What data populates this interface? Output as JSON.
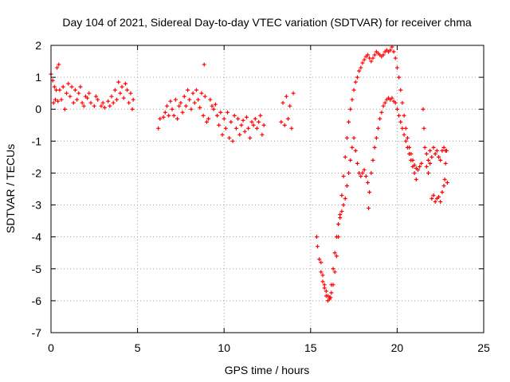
{
  "chart_data": {
    "type": "scatter",
    "title": "Day 104 of 2021, Sidereal Day-to-day VTEC variation (SDTVAR) for receiver chma",
    "xlabel": "GPS time / hours",
    "ylabel": "SDTVAR / TECUs",
    "xlim": [
      0,
      25
    ],
    "ylim": [
      -7,
      2
    ],
    "xticks": [
      0,
      5,
      10,
      15,
      20,
      25
    ],
    "yticks": [
      -7,
      -6,
      -5,
      -4,
      -3,
      -2,
      -1,
      0,
      1,
      2
    ],
    "grid": true,
    "marker": "+",
    "color": "#ff0000",
    "series": [
      {
        "name": "SDTVAR",
        "points": [
          [
            0.0,
            1.1
          ],
          [
            0.1,
            0.9
          ],
          [
            0.15,
            0.2
          ],
          [
            0.2,
            0.7
          ],
          [
            0.25,
            0.3
          ],
          [
            0.3,
            0.6
          ],
          [
            0.35,
            1.3
          ],
          [
            0.4,
            0.25
          ],
          [
            0.45,
            1.4
          ],
          [
            0.5,
            0.6
          ],
          [
            0.6,
            0.3
          ],
          [
            0.7,
            0.7
          ],
          [
            0.8,
            0.0
          ],
          [
            0.9,
            0.5
          ],
          [
            1.0,
            0.8
          ],
          [
            1.1,
            0.4
          ],
          [
            1.2,
            0.7
          ],
          [
            1.3,
            0.2
          ],
          [
            1.4,
            0.6
          ],
          [
            1.5,
            0.3
          ],
          [
            1.6,
            0.5
          ],
          [
            1.7,
            0.7
          ],
          [
            1.8,
            0.2
          ],
          [
            1.9,
            0.1
          ],
          [
            2.0,
            0.4
          ],
          [
            2.1,
            0.35
          ],
          [
            2.2,
            0.5
          ],
          [
            2.3,
            0.2
          ],
          [
            2.5,
            0.1
          ],
          [
            2.6,
            0.4
          ],
          [
            2.7,
            0.3
          ],
          [
            2.9,
            0.1
          ],
          [
            3.0,
            0.2
          ],
          [
            3.1,
            0.05
          ],
          [
            3.3,
            0.25
          ],
          [
            3.4,
            0.1
          ],
          [
            3.5,
            0.4
          ],
          [
            3.6,
            0.2
          ],
          [
            3.7,
            0.6
          ],
          [
            3.8,
            0.3
          ],
          [
            3.9,
            0.85
          ],
          [
            4.0,
            0.5
          ],
          [
            4.1,
            0.7
          ],
          [
            4.2,
            0.35
          ],
          [
            4.3,
            0.8
          ],
          [
            4.4,
            0.6
          ],
          [
            4.5,
            0.2
          ],
          [
            4.6,
            0.5
          ],
          [
            4.7,
            0.0
          ],
          [
            4.75,
            0.3
          ],
          [
            6.2,
            -0.6
          ],
          [
            6.3,
            -0.3
          ],
          [
            6.5,
            -0.25
          ],
          [
            6.6,
            -0.1
          ],
          [
            6.7,
            0.1
          ],
          [
            6.8,
            -0.2
          ],
          [
            6.9,
            0.25
          ],
          [
            7.0,
            0.0
          ],
          [
            7.1,
            -0.2
          ],
          [
            7.2,
            0.3
          ],
          [
            7.3,
            -0.3
          ],
          [
            7.4,
            0.1
          ],
          [
            7.5,
            0.2
          ],
          [
            7.6,
            -0.1
          ],
          [
            7.7,
            0.4
          ],
          [
            7.8,
            0.1
          ],
          [
            7.9,
            0.6
          ],
          [
            8.0,
            0.3
          ],
          [
            8.1,
            0.0
          ],
          [
            8.2,
            0.5
          ],
          [
            8.3,
            0.2
          ],
          [
            8.4,
            0.6
          ],
          [
            8.5,
            0.3
          ],
          [
            8.6,
            0.05
          ],
          [
            8.7,
            0.5
          ],
          [
            8.8,
            -0.2
          ],
          [
            8.85,
            1.4
          ],
          [
            8.9,
            0.4
          ],
          [
            9.0,
            -0.4
          ],
          [
            9.1,
            -0.3
          ],
          [
            9.2,
            0.3
          ],
          [
            9.3,
            0.1
          ],
          [
            9.4,
            0.0
          ],
          [
            9.5,
            0.15
          ],
          [
            9.6,
            -0.2
          ],
          [
            9.7,
            -0.5
          ],
          [
            9.8,
            -0.1
          ],
          [
            9.9,
            -0.8
          ],
          [
            10.0,
            -0.3
          ],
          [
            10.1,
            -0.6
          ],
          [
            10.2,
            -0.1
          ],
          [
            10.3,
            -0.9
          ],
          [
            10.4,
            -0.4
          ],
          [
            10.5,
            -1.0
          ],
          [
            10.6,
            -0.2
          ],
          [
            10.7,
            -0.6
          ],
          [
            10.8,
            -0.3
          ],
          [
            10.9,
            -0.8
          ],
          [
            11.0,
            -0.5
          ],
          [
            11.1,
            -0.35
          ],
          [
            11.2,
            -0.7
          ],
          [
            11.3,
            -0.25
          ],
          [
            11.4,
            -0.6
          ],
          [
            11.5,
            -0.9
          ],
          [
            11.6,
            -0.4
          ],
          [
            11.7,
            -0.5
          ],
          [
            11.8,
            -0.3
          ],
          [
            11.9,
            -0.6
          ],
          [
            12.0,
            -0.4
          ],
          [
            12.1,
            -0.2
          ],
          [
            12.2,
            -0.8
          ],
          [
            12.3,
            -0.5
          ],
          [
            13.3,
            -0.4
          ],
          [
            13.4,
            0.2
          ],
          [
            13.5,
            -0.5
          ],
          [
            13.6,
            0.4
          ],
          [
            13.7,
            -0.3
          ],
          [
            13.8,
            0.1
          ],
          [
            13.9,
            -0.6
          ],
          [
            14.0,
            0.5
          ],
          [
            15.35,
            -4.0
          ],
          [
            15.4,
            -4.3
          ],
          [
            15.5,
            -4.7
          ],
          [
            15.6,
            -5.1
          ],
          [
            15.7,
            -5.4
          ],
          [
            15.8,
            -5.6
          ],
          [
            15.9,
            -5.7
          ],
          [
            16.0,
            -5.85
          ],
          [
            16.1,
            -5.95
          ],
          [
            16.15,
            -5.9
          ],
          [
            16.2,
            -5.75
          ],
          [
            16.3,
            -5.5
          ],
          [
            16.4,
            -5.1
          ],
          [
            16.5,
            -4.6
          ],
          [
            16.6,
            -4.0
          ],
          [
            16.7,
            -3.4
          ],
          [
            16.8,
            -2.7
          ],
          [
            16.9,
            -2.1
          ],
          [
            17.0,
            -1.5
          ],
          [
            17.1,
            -0.9
          ],
          [
            17.2,
            -0.4
          ],
          [
            17.3,
            0.0
          ],
          [
            17.4,
            0.3
          ],
          [
            17.5,
            0.6
          ],
          [
            17.6,
            0.85
          ],
          [
            17.7,
            1.0
          ],
          [
            17.8,
            1.2
          ],
          [
            17.9,
            1.3
          ],
          [
            18.0,
            1.45
          ],
          [
            18.1,
            1.55
          ],
          [
            18.2,
            1.65
          ],
          [
            18.3,
            1.7
          ],
          [
            18.4,
            1.6
          ],
          [
            18.5,
            1.5
          ],
          [
            18.6,
            1.6
          ],
          [
            18.7,
            1.7
          ],
          [
            18.8,
            1.8
          ],
          [
            18.9,
            1.75
          ],
          [
            19.0,
            1.7
          ],
          [
            19.1,
            1.65
          ],
          [
            19.2,
            1.7
          ],
          [
            19.3,
            1.8
          ],
          [
            19.4,
            1.85
          ],
          [
            19.5,
            1.8
          ],
          [
            19.6,
            1.85
          ],
          [
            19.7,
            1.95
          ],
          [
            19.8,
            1.8
          ],
          [
            19.9,
            1.6
          ],
          [
            20.0,
            1.3
          ],
          [
            20.1,
            1.0
          ],
          [
            20.2,
            0.6
          ],
          [
            20.3,
            0.2
          ],
          [
            20.4,
            -0.2
          ],
          [
            20.5,
            -0.6
          ],
          [
            20.6,
            -0.9
          ],
          [
            20.7,
            -1.2
          ],
          [
            20.8,
            -1.4
          ],
          [
            20.9,
            -1.6
          ],
          [
            21.0,
            -1.75
          ],
          [
            21.1,
            -1.85
          ],
          [
            15.6,
            -4.8
          ],
          [
            15.7,
            -5.2
          ],
          [
            15.8,
            -5.5
          ],
          [
            15.9,
            -5.85
          ],
          [
            16.0,
            -6.0
          ],
          [
            16.1,
            -5.9
          ],
          [
            16.2,
            -5.5
          ],
          [
            16.3,
            -5.0
          ],
          [
            16.4,
            -4.5
          ],
          [
            16.5,
            -4.0
          ],
          [
            16.6,
            -3.6
          ],
          [
            16.7,
            -3.3
          ],
          [
            16.8,
            -3.2
          ],
          [
            16.9,
            -3.0
          ],
          [
            17.0,
            -2.8
          ],
          [
            17.1,
            -2.4
          ],
          [
            17.2,
            -2.0
          ],
          [
            17.3,
            -1.6
          ],
          [
            17.4,
            -1.2
          ],
          [
            17.5,
            -0.9
          ],
          [
            17.6,
            -1.3
          ],
          [
            17.7,
            -1.7
          ],
          [
            17.8,
            -2.0
          ],
          [
            17.9,
            -2.1
          ],
          [
            18.0,
            -2.0
          ],
          [
            18.1,
            -1.9
          ],
          [
            18.2,
            -2.1
          ],
          [
            18.3,
            -2.3
          ],
          [
            18.35,
            -3.1
          ],
          [
            18.4,
            -2.6
          ],
          [
            18.5,
            -2.0
          ],
          [
            18.6,
            -1.6
          ],
          [
            18.7,
            -1.2
          ],
          [
            18.8,
            -0.9
          ],
          [
            18.9,
            -0.6
          ],
          [
            19.0,
            -0.3
          ],
          [
            19.1,
            -0.1
          ],
          [
            19.2,
            0.1
          ],
          [
            19.3,
            0.2
          ],
          [
            19.4,
            0.3
          ],
          [
            19.5,
            0.35
          ],
          [
            19.6,
            0.3
          ],
          [
            19.7,
            0.35
          ],
          [
            19.8,
            0.25
          ],
          [
            19.9,
            0.2
          ],
          [
            20.0,
            0.0
          ],
          [
            20.1,
            -0.2
          ],
          [
            20.2,
            -0.4
          ],
          [
            20.3,
            -0.6
          ],
          [
            20.4,
            -0.8
          ],
          [
            20.5,
            -1.0
          ],
          [
            20.6,
            -1.2
          ],
          [
            20.7,
            -1.4
          ],
          [
            20.8,
            -1.6
          ],
          [
            20.9,
            -1.8
          ],
          [
            21.0,
            -2.0
          ],
          [
            21.1,
            -2.2
          ],
          [
            21.2,
            -1.9
          ],
          [
            21.3,
            -1.8
          ],
          [
            21.4,
            -1.7
          ],
          [
            21.5,
            0.0
          ],
          [
            21.55,
            -0.6
          ],
          [
            21.6,
            -1.2
          ],
          [
            21.7,
            -1.4
          ],
          [
            21.8,
            -1.6
          ],
          [
            21.9,
            -1.3
          ],
          [
            22.0,
            -1.5
          ],
          [
            22.1,
            -1.2
          ],
          [
            22.2,
            -1.4
          ],
          [
            22.3,
            -1.3
          ],
          [
            22.4,
            -1.5
          ],
          [
            22.5,
            -1.6
          ],
          [
            22.6,
            -1.3
          ],
          [
            22.7,
            -1.2
          ],
          [
            22.8,
            -1.3
          ],
          [
            21.7,
            -1.8
          ],
          [
            21.8,
            -2.0
          ],
          [
            21.9,
            -1.7
          ],
          [
            22.0,
            -2.8
          ],
          [
            22.1,
            -2.7
          ],
          [
            22.2,
            -2.9
          ],
          [
            22.3,
            -2.8
          ],
          [
            22.4,
            -2.75
          ],
          [
            22.5,
            -2.9
          ],
          [
            22.6,
            -2.6
          ],
          [
            22.7,
            -2.4
          ],
          [
            22.75,
            -2.2
          ],
          [
            22.8,
            -1.7
          ],
          [
            22.85,
            -1.3
          ],
          [
            22.9,
            -2.3
          ]
        ]
      }
    ]
  }
}
